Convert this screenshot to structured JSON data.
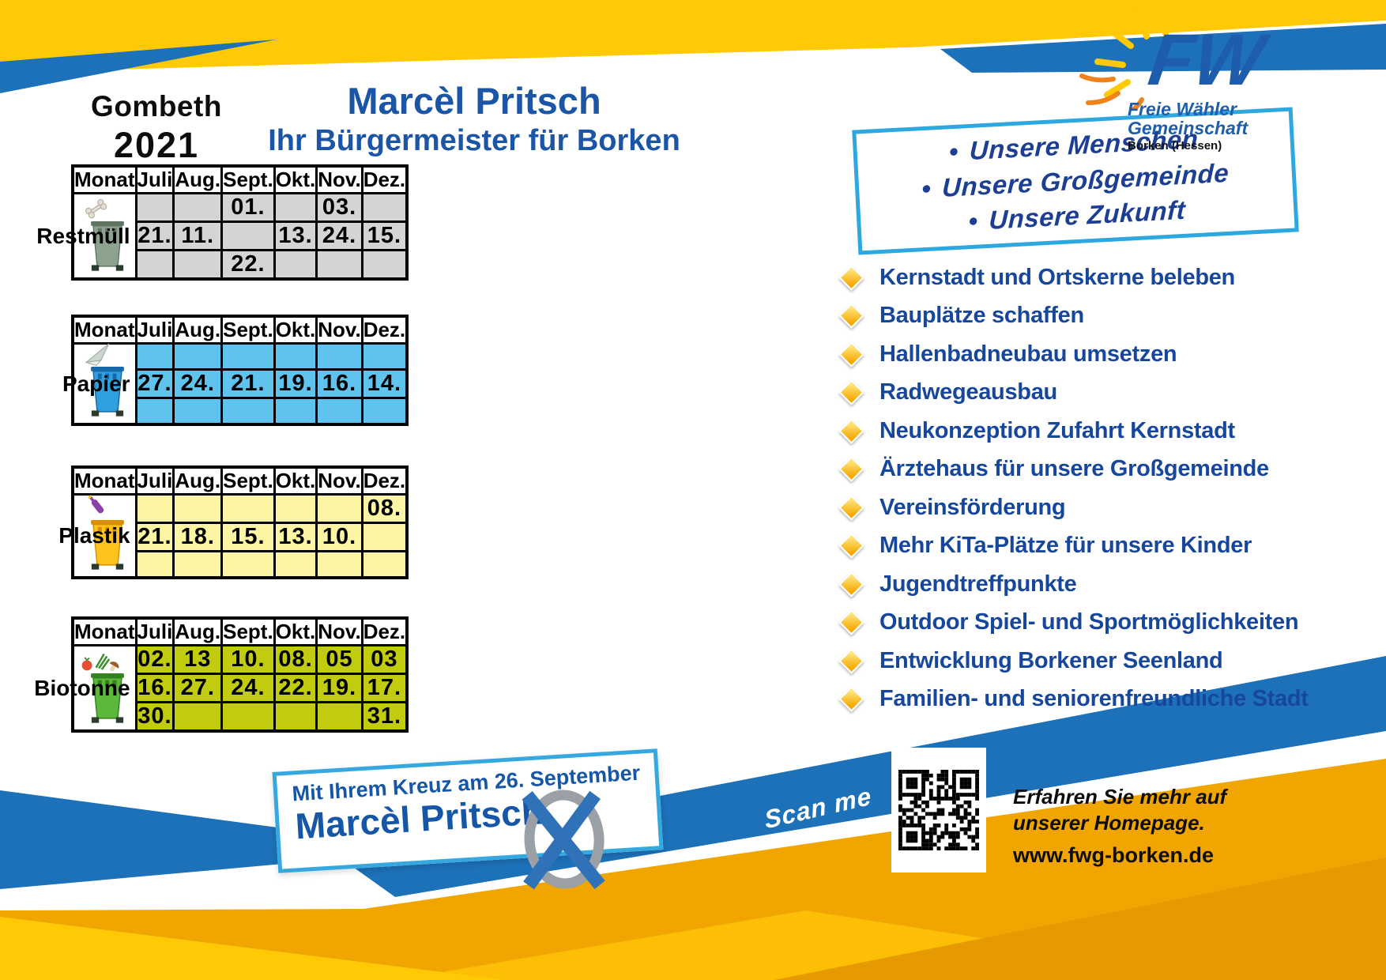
{
  "header": {
    "location": "Gombeth",
    "year": "2021",
    "title": "Marcèl Pritsch",
    "subtitle": "Ihr Bürgermeister für Borken"
  },
  "logo": {
    "abbr": "FW",
    "org_line1": "Freie Wähler",
    "org_line2": "Gemeinschaft",
    "org_line3": "Borken (Hessen)"
  },
  "slogan_box": {
    "items": [
      "Unsere Menschen",
      "Unsere Großgemeinde",
      "Unsere Zukunft"
    ]
  },
  "calendar": {
    "month_headers": [
      "Monat",
      "Juli",
      "Aug.",
      "Sept.",
      "Okt.",
      "Nov.",
      "Dez."
    ],
    "tables": [
      {
        "id": "restmuell",
        "name": "Restmüll",
        "cell_color": "#d4d4d6",
        "bin_color": "#8ea38f",
        "bin_dark": "#5f7561",
        "rows": [
          [
            "",
            "",
            "01.",
            "",
            "03.",
            ""
          ],
          [
            "21.",
            "11.",
            "",
            "13.",
            "24.",
            "15."
          ],
          [
            "",
            "",
            "22.",
            "",
            "",
            ""
          ]
        ]
      },
      {
        "id": "papier",
        "name": "Papier",
        "cell_color": "#5fc3ee",
        "bin_color": "#2f9fe0",
        "bin_dark": "#1668a8",
        "rows": [
          [
            "",
            "",
            "",
            "",
            "",
            ""
          ],
          [
            "27.",
            "24.",
            "21.",
            "19.",
            "16.",
            "14."
          ],
          [
            "",
            "",
            "",
            "",
            "",
            ""
          ]
        ]
      },
      {
        "id": "plastik",
        "name": "Plastik",
        "cell_color": "#fbf5a4",
        "bin_color": "#ffc31e",
        "bin_dark": "#d99000",
        "rows": [
          [
            "",
            "",
            "",
            "",
            "",
            "08."
          ],
          [
            "21.",
            "18.",
            "15.",
            "13.",
            "10.",
            ""
          ],
          [
            "",
            "",
            "",
            "",
            "",
            ""
          ]
        ]
      },
      {
        "id": "biotonne",
        "name": "Biotonne",
        "cell_color": "#c2cc0e",
        "bin_color": "#5cb83a",
        "bin_dark": "#35801f",
        "rows": [
          [
            "02.",
            "13",
            "10.",
            "08.",
            "05",
            "03"
          ],
          [
            "16.",
            "27.",
            "24.",
            "22.",
            "19.",
            "17."
          ],
          [
            "30.",
            "",
            "",
            "",
            "",
            "31."
          ]
        ]
      }
    ]
  },
  "agenda": {
    "items": [
      "Kernstadt und Ortskerne beleben",
      "Bauplätze schaffen",
      "Hallenbadneubau umsetzen",
      "Radwegeausbau",
      "Neukonzeption Zufahrt Kernstadt",
      "Ärztehaus für unsere Großgemeinde",
      "Vereinsförderung",
      "Mehr KiTa-Plätze für unsere Kinder",
      "Jugendtreffpunkte",
      "Outdoor Spiel- und Sportmöglichkeiten",
      "Entwicklung Borkener Seenland",
      "Familien- und seniorenfreundliche Stadt"
    ]
  },
  "footer": {
    "banner_line1": "Mit Ihrem Kreuz am 26. September",
    "banner_line2": "Marcèl Pritsch",
    "scan_label": "Scan me",
    "info_line1": "Erfahren Sie mehr auf",
    "info_line2": "unserer Homepage.",
    "website": "www.fwg-borken.de"
  },
  "colors": {
    "ribbon_yellow": "#ffc905",
    "ribbon_blue": "#1d71b8",
    "ribbon_orange": "#f0a500",
    "accent_light_blue": "#2da7e0",
    "text_blue": "#16479c"
  }
}
